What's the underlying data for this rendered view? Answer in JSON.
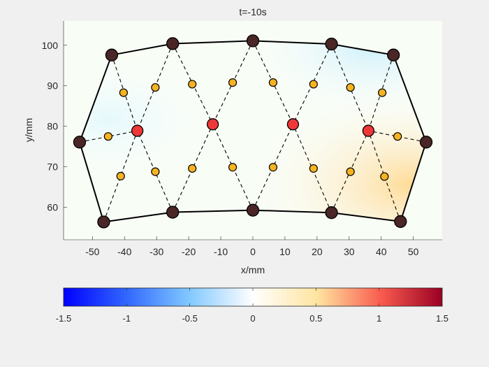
{
  "chart_data": {
    "type": "scatter",
    "title": "t=-10s",
    "xlabel": "x/mm",
    "ylabel": "y/mm",
    "xlim": [
      -59,
      59
    ],
    "ylim": [
      52,
      106
    ],
    "xticks": [
      -50,
      -40,
      -30,
      -20,
      -10,
      0,
      10,
      20,
      30,
      40,
      50
    ],
    "yticks": [
      60,
      70,
      80,
      90,
      100
    ],
    "grid": false,
    "boundary_nodes": [
      {
        "x": -44,
        "y": 97.6
      },
      {
        "x": -25,
        "y": 100.4
      },
      {
        "x": 0,
        "y": 101.1
      },
      {
        "x": 24.5,
        "y": 100.3
      },
      {
        "x": 43.8,
        "y": 97.6
      },
      {
        "x": 54,
        "y": 76.1
      },
      {
        "x": 46,
        "y": 56.5
      },
      {
        "x": 24.5,
        "y": 58.7
      },
      {
        "x": 0,
        "y": 59.3
      },
      {
        "x": -25,
        "y": 58.8
      },
      {
        "x": -46.5,
        "y": 56.4
      },
      {
        "x": -54,
        "y": 76.1
      }
    ],
    "inner_nodes": [
      {
        "x": -36,
        "y": 78.9
      },
      {
        "x": -12.5,
        "y": 80.5
      },
      {
        "x": 12.5,
        "y": 80.5
      },
      {
        "x": 36,
        "y": 78.9
      }
    ],
    "midpoint_nodes": [
      {
        "x": -40.3,
        "y": 88.3
      },
      {
        "x": -30.4,
        "y": 89.6
      },
      {
        "x": -18.9,
        "y": 90.4
      },
      {
        "x": -6.3,
        "y": 90.8
      },
      {
        "x": 6.3,
        "y": 90.8
      },
      {
        "x": 18.9,
        "y": 90.4
      },
      {
        "x": 30.4,
        "y": 89.6
      },
      {
        "x": 40.3,
        "y": 88.3
      },
      {
        "x": -45.1,
        "y": 77.5
      },
      {
        "x": 45.1,
        "y": 77.5
      },
      {
        "x": -41.2,
        "y": 67.7
      },
      {
        "x": -30.4,
        "y": 68.8
      },
      {
        "x": -18.9,
        "y": 69.6
      },
      {
        "x": -6.3,
        "y": 69.9
      },
      {
        "x": 6.3,
        "y": 69.9
      },
      {
        "x": 18.9,
        "y": 69.6
      },
      {
        "x": 30.4,
        "y": 68.8
      },
      {
        "x": 41,
        "y": 67.6
      }
    ],
    "colorbar": {
      "min": -1.5,
      "max": 1.5,
      "ticks": [
        "-1.5",
        "-1",
        "-0.5",
        "0",
        "0.5",
        "1",
        "1.5"
      ],
      "stops": [
        "#0000ff",
        "#2f63ff",
        "#80c8ff",
        "#ffffff",
        "#ffe4a0",
        "#f85a4e",
        "#990022"
      ]
    },
    "colors": {
      "boundary_node": "#4a2626",
      "inner_node": "#ee3838",
      "midpoint_node": "#f5b222",
      "edge": "#000000"
    }
  }
}
